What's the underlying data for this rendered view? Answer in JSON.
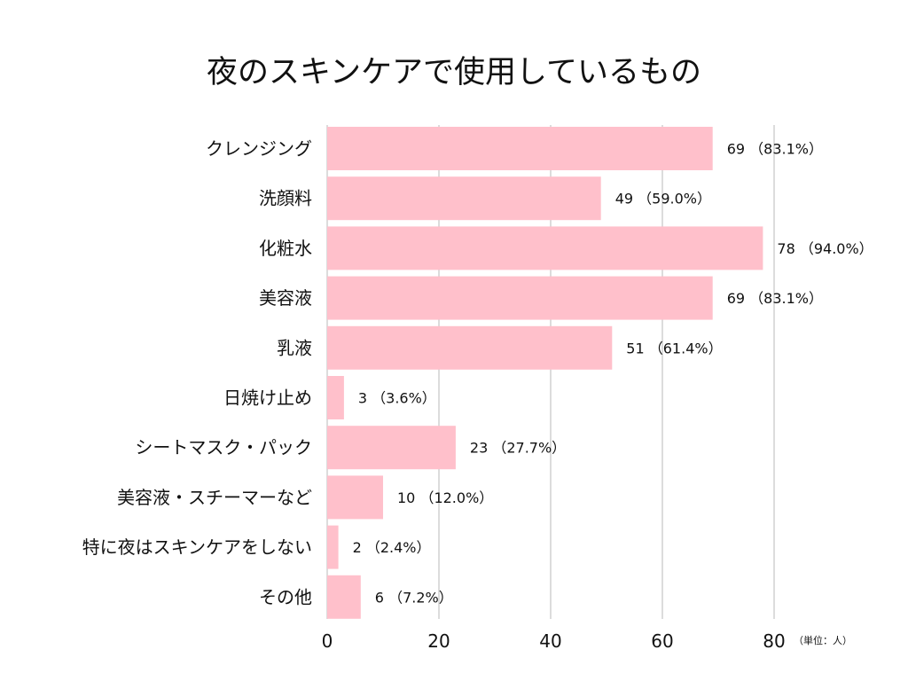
{
  "chart_data": {
    "type": "bar",
    "orientation": "horizontal",
    "title": "夜のスキンケアで使用しているもの",
    "unit_note": "（単位：人）",
    "categories": [
      "クレンジング",
      "洗顔料",
      "化粧水",
      "美容液",
      "乳液",
      "日焼け止め",
      "シートマスク・パック",
      "美容液・スチーマーなど",
      "特に夜はスキンケアをしない",
      "その他"
    ],
    "values": [
      69,
      49,
      78,
      69,
      51,
      3,
      23,
      10,
      2,
      6
    ],
    "value_labels": [
      "69 （83.1%）",
      "49 （59.0%）",
      "78 （94.0%）",
      "69 （83.1%）",
      "51 （61.4%）",
      "3 （3.6%）",
      "23 （27.7%）",
      "10 （12.0%）",
      "2 （2.4%）",
      "6 （7.2%）"
    ],
    "xlim": [
      0,
      80
    ],
    "xticks": [
      0,
      20,
      40,
      60,
      80
    ],
    "grid": true,
    "bar_color": "#ffc0cb",
    "grid_color": "#d0d0d0"
  }
}
